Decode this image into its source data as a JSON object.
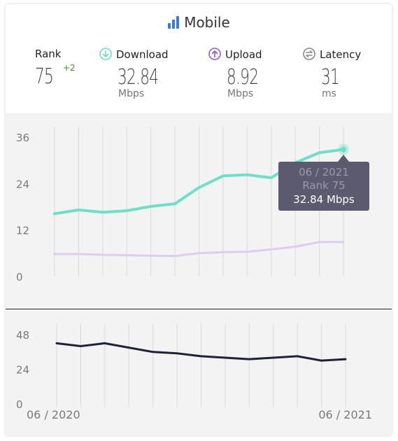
{
  "header": {
    "title": "Mobile"
  },
  "stats": {
    "rank": {
      "label": "Rank",
      "value": "75",
      "change": "+2"
    },
    "download": {
      "label": "Download",
      "value": "32.84",
      "unit": "Mbps"
    },
    "upload": {
      "label": "Upload",
      "value": "8.92",
      "unit": "Mbps"
    },
    "latency": {
      "label": "Latency",
      "value": "31",
      "unit": "ms"
    }
  },
  "colors": {
    "download": "#6ee0c8",
    "upload": "#dcccf0",
    "latency": "#1e2235",
    "accent_icon": "#3a7bd5",
    "tooltip_bg": "#5c5a6e"
  },
  "tooltip": {
    "date": "06 / 2021",
    "rank": "Rank 75",
    "value": "32.84 Mbps"
  },
  "chart_data": [
    {
      "type": "line",
      "x_count": 13,
      "x_start_label": "06 / 2020",
      "x_end_label": "06 / 2021",
      "ylim": [
        0,
        36
      ],
      "yticks": [
        0,
        12,
        24,
        36
      ],
      "grid": true,
      "series": [
        {
          "name": "Download",
          "values": [
            16.2,
            17.2,
            16.6,
            17.0,
            18.1,
            18.8,
            23.0,
            26.0,
            26.3,
            25.5,
            29.4,
            32.0,
            32.84
          ]
        },
        {
          "name": "Upload",
          "values": [
            5.8,
            5.8,
            5.6,
            5.5,
            5.4,
            5.3,
            6.0,
            6.3,
            6.4,
            7.0,
            7.7,
            8.9,
            8.92
          ]
        }
      ]
    },
    {
      "type": "line",
      "x_count": 13,
      "x_start_label": "06 / 2020",
      "x_end_label": "06 / 2021",
      "ylim": [
        0,
        48
      ],
      "yticks": [
        0,
        24,
        48
      ],
      "grid": true,
      "series": [
        {
          "name": "Latency",
          "values": [
            42,
            40,
            42,
            39,
            36,
            35,
            33,
            32,
            31,
            32,
            33,
            30,
            31
          ]
        }
      ]
    }
  ]
}
